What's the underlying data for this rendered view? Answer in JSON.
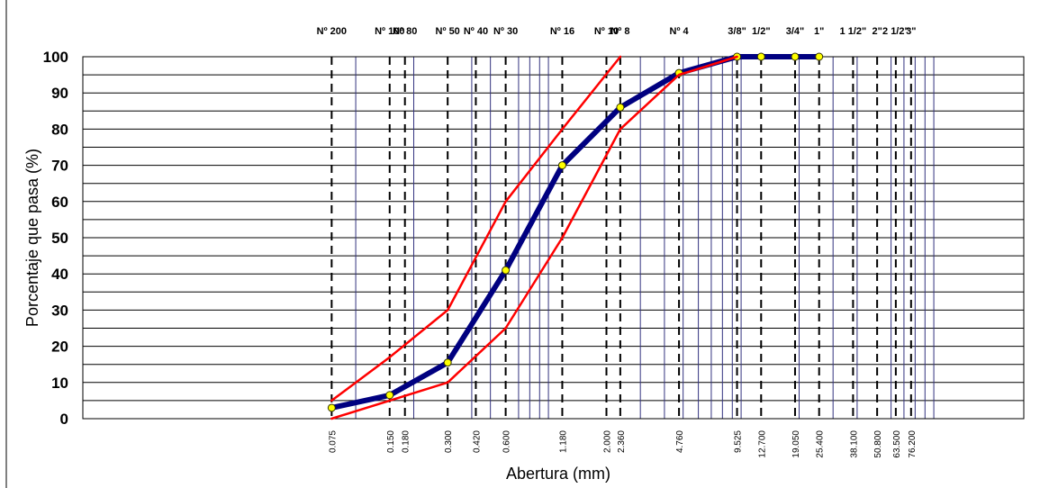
{
  "chart_data": {
    "type": "line",
    "title": "",
    "xlabel": "Abertura (mm)",
    "ylabel": "Porcentaje que pasa (%)",
    "x_scale": "log",
    "x_reversed": true,
    "ylim": [
      0,
      100
    ],
    "yticks": [
      0,
      10,
      20,
      30,
      40,
      50,
      60,
      70,
      80,
      90,
      100
    ],
    "grid": true,
    "legend": "none",
    "sieves": [
      {
        "label": "3\"",
        "size": 76.2
      },
      {
        "label": "2 1/2\"",
        "size": 63.5
      },
      {
        "label": "2\"",
        "size": 50.8
      },
      {
        "label": "1 1/2\"",
        "size": 38.1
      },
      {
        "label": "1\"",
        "size": 25.4
      },
      {
        "label": "3/4\"",
        "size": 19.05
      },
      {
        "label": "1/2\"",
        "size": 12.7
      },
      {
        "label": "3/8\"",
        "size": 9.525
      },
      {
        "label": "Nº 4",
        "size": 4.76
      },
      {
        "label": "Nº 8",
        "size": 2.36
      },
      {
        "label": "Nº 10",
        "size": 2.0
      },
      {
        "label": "Nº 16",
        "size": 1.18
      },
      {
        "label": "Nº 30",
        "size": 0.6
      },
      {
        "label": "Nº 40",
        "size": 0.42
      },
      {
        "label": "Nº 50",
        "size": 0.3
      },
      {
        "label": "Nº 80",
        "size": 0.18
      },
      {
        "label": "Nº 100",
        "size": 0.15
      },
      {
        "label": "Nº 200",
        "size": 0.075
      }
    ],
    "xtick_labels": [
      {
        "text": "76.200",
        "size": 76.2
      },
      {
        "text": "63.500",
        "size": 63.5
      },
      {
        "text": "50.800",
        "size": 50.8
      },
      {
        "text": "38.100",
        "size": 38.1
      },
      {
        "text": "25.400",
        "size": 25.4
      },
      {
        "text": "19.050",
        "size": 19.05
      },
      {
        "text": "12.700",
        "size": 12.7
      },
      {
        "text": "9.525",
        "size": 9.525
      },
      {
        "text": "4.760",
        "size": 4.76
      },
      {
        "text": "2.360",
        "size": 2.36
      },
      {
        "text": "2.000",
        "size": 2.0
      },
      {
        "text": "1.180",
        "size": 1.18
      },
      {
        "text": "0.600",
        "size": 0.6
      },
      {
        "text": "0.420",
        "size": 0.42
      },
      {
        "text": "0.300",
        "size": 0.3
      },
      {
        "text": "0.180",
        "size": 0.18
      },
      {
        "text": "0.150",
        "size": 0.15
      },
      {
        "text": "0.075",
        "size": 0.075
      }
    ],
    "series": [
      {
        "color": "#000080",
        "markers": true,
        "points": [
          {
            "x": 25.4,
            "y": 100
          },
          {
            "x": 19.05,
            "y": 100
          },
          {
            "x": 12.7,
            "y": 100
          },
          {
            "x": 9.525,
            "y": 100
          },
          {
            "x": 4.76,
            "y": 95.5
          },
          {
            "x": 2.36,
            "y": 86
          },
          {
            "x": 1.18,
            "y": 70
          },
          {
            "x": 0.6,
            "y": 41
          },
          {
            "x": 0.3,
            "y": 15.5
          },
          {
            "x": 0.15,
            "y": 6.5
          },
          {
            "x": 0.075,
            "y": 3
          }
        ]
      },
      {
        "color": "#ff0000",
        "markers": false,
        "points": [
          {
            "x": 9.525,
            "y": 100
          },
          {
            "x": 4.76,
            "y": 95
          },
          {
            "x": 2.36,
            "y": 80
          },
          {
            "x": 1.18,
            "y": 50
          },
          {
            "x": 0.6,
            "y": 25
          },
          {
            "x": 0.3,
            "y": 10
          },
          {
            "x": 0.15,
            "y": 5
          },
          {
            "x": 0.075,
            "y": 0
          }
        ]
      },
      {
        "color": "#ff0000",
        "markers": false,
        "points": [
          {
            "x": 2.36,
            "y": 100
          },
          {
            "x": 1.18,
            "y": 80
          },
          {
            "x": 0.6,
            "y": 60
          },
          {
            "x": 0.3,
            "y": 30
          },
          {
            "x": 0.15,
            "y": 17
          },
          {
            "x": 0.075,
            "y": 5
          }
        ]
      }
    ]
  }
}
